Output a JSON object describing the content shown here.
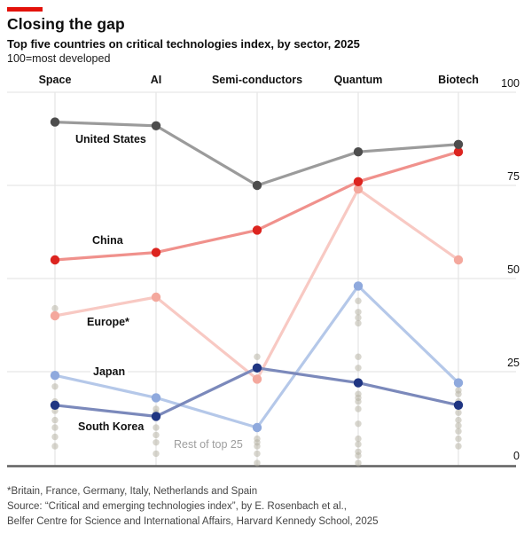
{
  "header": {
    "title": "Closing the gap",
    "subtitle": "Top five countries on critical technologies index, by sector, 2025",
    "unit_note": "100=most developed"
  },
  "chart_data": {
    "type": "line",
    "title": "Top five countries on critical technologies index, by sector, 2025",
    "subtitle": "100=most developed",
    "categories": [
      "Space",
      "AI",
      "Semi-conductors",
      "Quantum",
      "Biotech"
    ],
    "ylim": [
      0,
      100
    ],
    "yticks": [
      100,
      75,
      50,
      25,
      0
    ],
    "ytick_labels": [
      "100",
      "75",
      "50",
      "25",
      "0"
    ],
    "grid": "horizontal-and-vertical",
    "legend_position": "inline-labels",
    "accent_color": "#e3120b",
    "series": [
      {
        "name": "United States",
        "values": [
          92,
          91,
          75,
          84,
          86
        ],
        "line_color": "#9b9b9b",
        "point_color": "#4d4d4d"
      },
      {
        "name": "China",
        "values": [
          55,
          57,
          63,
          76,
          84
        ],
        "line_color": "#f0918c",
        "point_color": "#dc241f"
      },
      {
        "name": "Europe*",
        "values": [
          40,
          45,
          23,
          74,
          55
        ],
        "line_color": "#f8c9c3",
        "point_color": "#f4a89d"
      },
      {
        "name": "Japan",
        "values": [
          24,
          18,
          10,
          48,
          22
        ],
        "line_color": "#b5c8e9",
        "point_color": "#8fa9dd"
      },
      {
        "name": "South Korea",
        "values": [
          16,
          13,
          26,
          22,
          16
        ],
        "line_color": "#7b89bb",
        "point_color": "#1f3582"
      }
    ],
    "rest_of_top25": {
      "label": "Rest of top 25",
      "color": "#b8b4a5",
      "points_by_category": [
        [
          42,
          21,
          17,
          14.5,
          12,
          10,
          7.5,
          5
        ],
        [
          15,
          14,
          10,
          8,
          6,
          3
        ],
        [
          29,
          7,
          6,
          5,
          3,
          0.5
        ],
        [
          44,
          41,
          39.5,
          38,
          29,
          26,
          19,
          18,
          17,
          15,
          11,
          7,
          5.5,
          3.5,
          2.5,
          0.5
        ],
        [
          20,
          19,
          17,
          14,
          12,
          10.5,
          9,
          7,
          5
        ]
      ]
    }
  },
  "footer": {
    "footnote": "*Britain, France, Germany, Italy, Netherlands and Spain",
    "source_line1": "Source: “Critical and emerging technologies index”, by E. Rosenbach et al.,",
    "source_line2": "Belfer Centre for Science and International Affairs, Harvard Kennedy School, 2025"
  }
}
